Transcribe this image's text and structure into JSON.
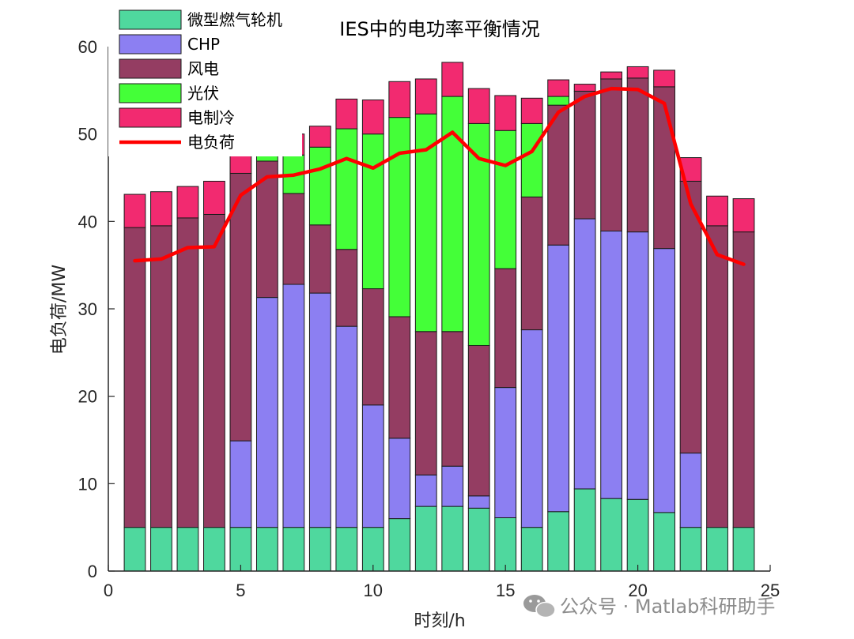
{
  "watermark": {
    "text": "公众号 · Matlab科研助手",
    "icon": "wechat-icon"
  },
  "chart_data": {
    "type": "bar",
    "stacked": true,
    "title": "IES中的电功率平衡情况",
    "xlabel": "时刻/h",
    "ylabel": "电负荷/MW",
    "xlim": [
      0,
      25
    ],
    "ylim": [
      0,
      60
    ],
    "xticks": [
      0,
      5,
      10,
      15,
      20,
      25
    ],
    "yticks": [
      0,
      10,
      20,
      30,
      40,
      50,
      60
    ],
    "grid": false,
    "legend_position": "top-left",
    "x": [
      1,
      2,
      3,
      4,
      5,
      6,
      7,
      8,
      9,
      10,
      11,
      12,
      13,
      14,
      15,
      16,
      17,
      18,
      19,
      20,
      21,
      22,
      23,
      24
    ],
    "series": [
      {
        "name": "微型燃气轮机",
        "kind": "bar",
        "color": "#4fd89e",
        "values": [
          5.0,
          5.0,
          5.0,
          5.0,
          5.0,
          5.0,
          5.0,
          5.0,
          5.0,
          5.0,
          6.0,
          7.4,
          7.4,
          7.2,
          6.1,
          5.0,
          6.8,
          9.4,
          8.3,
          8.2,
          6.7,
          5.0,
          5.0,
          5.0
        ]
      },
      {
        "name": "CHP",
        "kind": "bar",
        "color": "#8c7ff2",
        "values": [
          0,
          0,
          0,
          0,
          9.9,
          26.3,
          27.8,
          26.8,
          23.0,
          14.0,
          9.2,
          3.6,
          4.6,
          1.4,
          14.9,
          22.6,
          30.5,
          30.9,
          30.6,
          30.6,
          30.2,
          8.5,
          0,
          0
        ]
      },
      {
        "name": "风电",
        "kind": "bar",
        "color": "#943d62",
        "values": [
          34.3,
          34.5,
          35.4,
          35.8,
          30.6,
          15.6,
          10.4,
          7.8,
          8.8,
          13.3,
          13.9,
          16.4,
          15.4,
          17.2,
          13.6,
          15.2,
          16.0,
          14.6,
          17.4,
          17.6,
          18.5,
          31.1,
          34.5,
          33.8
        ]
      },
      {
        "name": "光伏",
        "kind": "bar",
        "color": "#44ff38",
        "values": [
          0,
          0,
          0,
          0,
          0,
          0.8,
          4.4,
          8.9,
          13.8,
          17.7,
          22.8,
          24.9,
          26.9,
          25.4,
          15.8,
          8.4,
          1.0,
          0,
          0,
          0,
          0,
          0,
          0,
          0
        ]
      },
      {
        "name": "电制冷",
        "kind": "bar",
        "color": "#f22a70",
        "values": [
          3.8,
          3.9,
          3.6,
          3.8,
          2.6,
          2.6,
          2.4,
          2.4,
          3.4,
          3.9,
          4.1,
          4.0,
          3.9,
          4.0,
          4.0,
          2.9,
          1.9,
          0.8,
          0.8,
          1.3,
          1.9,
          2.7,
          3.4,
          3.8
        ]
      },
      {
        "name": "电负荷",
        "kind": "line",
        "color": "#ff0000",
        "values": [
          35.5,
          35.7,
          37.0,
          37.1,
          43.0,
          45.1,
          45.3,
          46.0,
          47.2,
          46.1,
          47.8,
          48.2,
          50.2,
          47.2,
          46.4,
          48.0,
          52.5,
          54.3,
          55.2,
          55.1,
          53.5,
          42.0,
          36.2,
          35.1
        ]
      }
    ]
  }
}
